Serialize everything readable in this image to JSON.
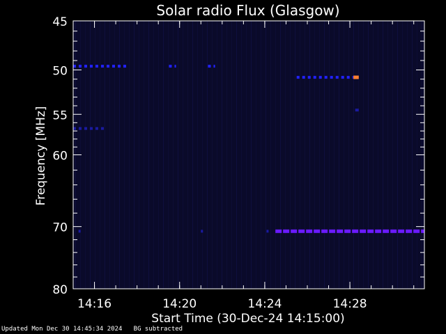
{
  "chart_data": {
    "type": "heatmap",
    "title": "Solar radio Flux (Glasgow)",
    "xlabel": "Start Time (30-Dec-24 14:15:00)",
    "ylabel": "Frequency [MHz]",
    "x_range_minutes": [
      "14:15:00",
      "14:31:30"
    ],
    "x_ticks": [
      "14:16",
      "14:20",
      "14:24",
      "14:28"
    ],
    "y_ticks": [
      45,
      50,
      55,
      60,
      70,
      80
    ],
    "y_range": [
      45,
      80
    ],
    "grid": false,
    "background_color": "#000000",
    "axis_color": "#ffffff",
    "colormap": [
      "#0a0a2a",
      "#1a1aa0",
      "#2222ff",
      "#6a1aff",
      "#ff8030"
    ],
    "emission_bands": [
      {
        "freq_mhz": 49.6,
        "level": "medium",
        "segments": [
          [
            "14:15:00",
            "14:17:30"
          ],
          [
            "14:19:30",
            "14:19:50"
          ],
          [
            "14:21:20",
            "14:21:40"
          ]
        ]
      },
      {
        "freq_mhz": 50.8,
        "level": "strong",
        "segments": [
          [
            "14:25:30",
            "14:28:10"
          ]
        ]
      },
      {
        "freq_mhz": 50.8,
        "level": "burst",
        "segments": [
          [
            "14:28:10",
            "14:28:25"
          ]
        ]
      },
      {
        "freq_mhz": 56.7,
        "level": "weak",
        "segments": [
          [
            "14:15:00",
            "14:16:30"
          ]
        ]
      },
      {
        "freq_mhz": 54.5,
        "level": "weak",
        "segments": [
          [
            "14:28:15",
            "14:28:25"
          ]
        ]
      },
      {
        "freq_mhz": 70.7,
        "level": "intense",
        "segments": [
          [
            "14:24:30",
            "14:31:30"
          ]
        ]
      },
      {
        "freq_mhz": 70.7,
        "level": "weak",
        "segments": [
          [
            "14:15:15",
            "14:15:20"
          ],
          [
            "14:21:00",
            "14:21:05"
          ],
          [
            "14:24:05",
            "14:24:10"
          ]
        ]
      }
    ]
  },
  "footer": {
    "updated": "Updated Mon Dec 30 14:45:34 2024",
    "note": "BG subtracted"
  }
}
